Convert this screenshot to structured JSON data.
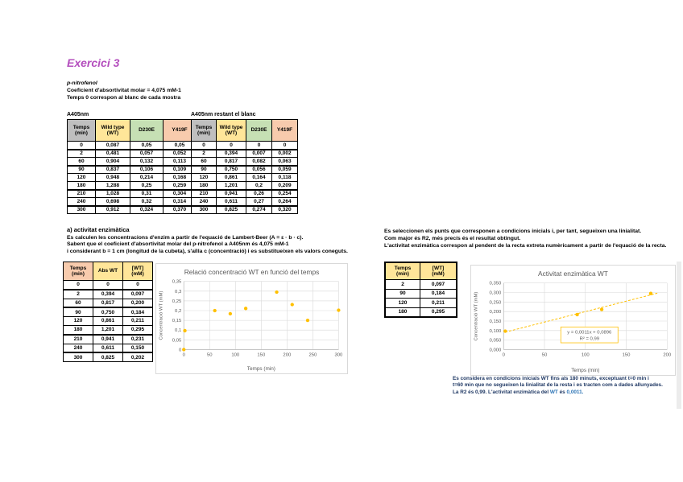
{
  "page": {
    "heading": "Exercici 3"
  },
  "intro": {
    "line1": "p-nitrofenol",
    "line2": "Coeficient d'absortivitat molar = 4,075 mM-1",
    "line3": "Temps 0 correspon al blanc de cada mostra"
  },
  "colors": {
    "heading_purple": "#B44FBE",
    "point_orange": "#FFC000",
    "header_grey": "#BFBFBF",
    "header_yellow": "#FFE699",
    "header_green": "#C6E0B4",
    "header_orange": "#F8CBAD",
    "conclusion_navy": "#1F3864",
    "conclusion_blue": "#2E75B6"
  },
  "tables": {
    "raw": {
      "label": "A405nm",
      "columns": [
        {
          "label": "Temps\n(min)",
          "bg": "#BFBFBF"
        },
        {
          "label": "Wild type\n(WT)",
          "bg": "#FFE699"
        },
        {
          "label": "D230E",
          "bg": "#C6E0B4"
        },
        {
          "label": "Y419F",
          "bg": "#F8CBAD"
        }
      ],
      "rows": [
        [
          "0",
          "0,087",
          "0,05",
          "0,05"
        ],
        [
          "2",
          "0,481",
          "0,057",
          "0,052"
        ],
        [
          "60",
          "0,904",
          "0,132",
          "0,113"
        ],
        [
          "90",
          "0,837",
          "0,106",
          "0,109"
        ],
        [
          "120",
          "0,948",
          "0,214",
          "0,168"
        ],
        [
          "180",
          "1,288",
          "0,25",
          "0,259"
        ],
        [
          "210",
          "1,028",
          "0,31",
          "0,304"
        ],
        [
          "240",
          "0,698",
          "0,32",
          "0,314"
        ],
        [
          "300",
          "0,912",
          "0,324",
          "0,370"
        ]
      ],
      "group_after": [
        0,
        2,
        5,
        7
      ]
    },
    "blank": {
      "label": "A405nm restant el blanc",
      "columns": [
        {
          "label": "Temps\n(min)",
          "bg": "#BFBFBF"
        },
        {
          "label": "Wild type\n(WT)",
          "bg": "#FFE699"
        },
        {
          "label": "D230E",
          "bg": "#C6E0B4"
        },
        {
          "label": "Y419F",
          "bg": "#F8CBAD"
        }
      ],
      "rows": [
        [
          "0",
          "0",
          "0",
          "0"
        ],
        [
          "2",
          "0,394",
          "0,007",
          "0,002"
        ],
        [
          "60",
          "0,817",
          "0,082",
          "0,063"
        ],
        [
          "90",
          "0,750",
          "0,056",
          "0,059"
        ],
        [
          "120",
          "0,861",
          "0,164",
          "0,118"
        ],
        [
          "180",
          "1,201",
          "0,2",
          "0,209"
        ],
        [
          "210",
          "0,941",
          "0,26",
          "0,254"
        ],
        [
          "240",
          "0,611",
          "0,27",
          "0,264"
        ],
        [
          "300",
          "0,825",
          "0,274",
          "0,320"
        ]
      ],
      "group_after": [
        0,
        2,
        5,
        7
      ]
    },
    "wt": {
      "label": "",
      "columns": [
        {
          "label": "Temps\n(min)",
          "bg": "#F8CBAD"
        },
        {
          "label": "Abs WT",
          "bg": "#FFE699"
        },
        {
          "label": "[WT]\n(mM)",
          "bg": "#FFE699"
        }
      ],
      "rows": [
        [
          "0",
          "0",
          "0"
        ],
        [
          "2",
          "0,394",
          "0,097"
        ],
        [
          "60",
          "0,817",
          "0,200"
        ],
        [
          "90",
          "0,750",
          "0,184"
        ],
        [
          "120",
          "0,861",
          "0,211"
        ],
        [
          "180",
          "1,201",
          "0,295"
        ],
        [
          "210",
          "0,941",
          "0,231"
        ],
        [
          "240",
          "0,611",
          "0,150"
        ],
        [
          "300",
          "0,825",
          "0,202"
        ]
      ],
      "group_after": [
        0,
        2,
        5,
        7
      ]
    },
    "selected": {
      "label": "",
      "columns": [
        {
          "label": "Temps\n(min)",
          "bg": "#FFE699"
        },
        {
          "label": "[WT]\n(mM)",
          "bg": "#FFE699"
        }
      ],
      "rows": [
        [
          "2",
          "0,097"
        ],
        [
          "90",
          "0,184"
        ],
        [
          "120",
          "0,211"
        ],
        [
          "180",
          "0,295"
        ]
      ],
      "group_after": []
    }
  },
  "section_a": {
    "heading": "a) activitat enzimàtica",
    "line1": "Es calculen les concentracions d'enzim a partir de l'equació de Lambert-Beer (A = ε · b · c).",
    "line2": "Sabent que el coeficient d'absortivitat molar del p-nitrofenol a A405nm és 4,075 mM-1",
    "line3": "i considerant b = 1 cm (longitud de la cubeta), s'aïlla c (concentració) i es substitueixen els valors coneguts."
  },
  "selection_notes": {
    "line1": "Es seleccionen els punts que corresponen a condicions inicials i, per tant, segueixen una linialitat.",
    "line2": "Com major és R2, més precís és el resultat obtingut.",
    "line3": "L'activitat enzimàtica correspon al pendent de la recta extreta numèricament a partir de l'equació de la recta."
  },
  "conclusion": {
    "line1": "Es considera en condicions inicials WT fins als 180 minuts, exceptuant t=0 min i",
    "line2": "t=60 min que no segueixen la linialitat de la resta i es tracten com a dades allunyades.",
    "line3_prefix": "La R2 és 0,99. L'activitat enzimàtica del ",
    "line3_wt": "WT",
    "line3_mid": " és ",
    "line3_value": "0,0011."
  },
  "chart_data": [
    {
      "type": "scatter",
      "title": "Relació concentració WT en funció del temps",
      "xlabel": "Temps (min)",
      "ylabel": "Concentració WT (mM)",
      "xlim": [
        0,
        300
      ],
      "ylim": [
        0,
        0.35
      ],
      "grid": true,
      "legend": "none",
      "point_color": "#FFC000",
      "margins": [
        34,
        22,
        10,
        30
      ],
      "x_ticks": [
        {
          "v": 0,
          "l": "0"
        },
        {
          "v": 50,
          "l": "50"
        },
        {
          "v": 100,
          "l": "100"
        },
        {
          "v": 150,
          "l": "150"
        },
        {
          "v": 200,
          "l": "200"
        },
        {
          "v": 250,
          "l": "250"
        },
        {
          "v": 300,
          "l": "300"
        }
      ],
      "y_ticks": [
        {
          "v": 0,
          "l": "0"
        },
        {
          "v": 0.05,
          "l": "0,05"
        },
        {
          "v": 0.1,
          "l": "0,1"
        },
        {
          "v": 0.15,
          "l": "0,15"
        },
        {
          "v": 0.2,
          "l": "0,2"
        },
        {
          "v": 0.25,
          "l": "0,25"
        },
        {
          "v": 0.3,
          "l": "0,3"
        },
        {
          "v": 0.35,
          "l": "0,35"
        }
      ],
      "points": [
        [
          0,
          0
        ],
        [
          2,
          0.097
        ],
        [
          60,
          0.2
        ],
        [
          90,
          0.184
        ],
        [
          120,
          0.211
        ],
        [
          180,
          0.295
        ],
        [
          210,
          0.231
        ],
        [
          240,
          0.15
        ],
        [
          300,
          0.202
        ]
      ]
    },
    {
      "type": "scatter",
      "title": "Activitat enzimàtica WT",
      "xlabel": "Temps (min)",
      "ylabel": "Concentració WT (mM)",
      "xlim": [
        0,
        200
      ],
      "ylim": [
        0,
        0.35
      ],
      "grid": true,
      "legend": "none",
      "point_color": "#FFC000",
      "margins": [
        40,
        22,
        9,
        32
      ],
      "x_ticks": [
        {
          "v": 0,
          "l": "0"
        },
        {
          "v": 50,
          "l": "50"
        },
        {
          "v": 100,
          "l": "100"
        },
        {
          "v": 150,
          "l": "150"
        },
        {
          "v": 200,
          "l": "200"
        }
      ],
      "y_ticks": [
        {
          "v": 0,
          "l": "0,000"
        },
        {
          "v": 0.05,
          "l": "0,050"
        },
        {
          "v": 0.1,
          "l": "0,100"
        },
        {
          "v": 0.15,
          "l": "0,150"
        },
        {
          "v": 0.2,
          "l": "0,200"
        },
        {
          "v": 0.25,
          "l": "0,250"
        },
        {
          "v": 0.3,
          "l": "0,300"
        },
        {
          "v": 0.35,
          "l": "0,350"
        }
      ],
      "points": [
        [
          2,
          0.097
        ],
        [
          90,
          0.184
        ],
        [
          120,
          0.211
        ],
        [
          180,
          0.295
        ]
      ],
      "trendline": {
        "style": "dashed",
        "x1": 2,
        "x2": 188,
        "slope": 0.0011,
        "intercept": 0.0896,
        "equation": "y = 0,0011x + 0,0896",
        "r2_label": "R² = 0,99",
        "box": [
          0.35,
          0.66
        ]
      }
    }
  ]
}
